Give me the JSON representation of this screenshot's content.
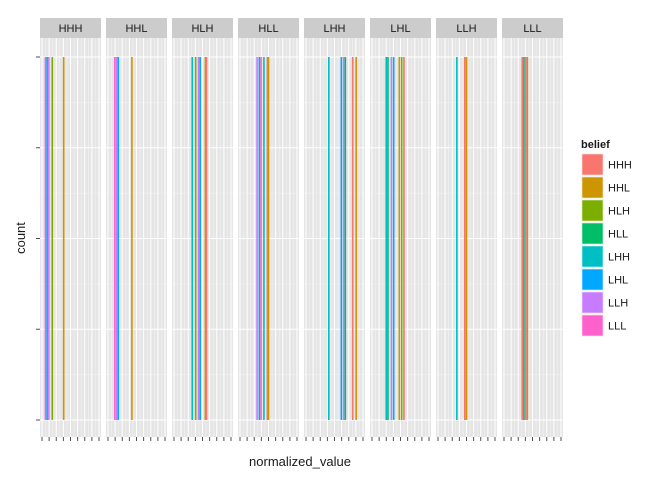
{
  "chart_data": {
    "type": "bar",
    "xlabel": "normalized_value",
    "ylabel": "count",
    "facets": [
      "HHH",
      "HHL",
      "HLH",
      "HLL",
      "LHH",
      "LHL",
      "LLH",
      "LLL"
    ],
    "xlim": [
      0,
      1
    ],
    "ylim": [
      0,
      1
    ],
    "y_ticks": [
      0,
      0.25,
      0.5,
      0.75,
      1
    ],
    "x_ticks": [
      0,
      0.125,
      0.25,
      0.375,
      0.5,
      0.625,
      0.75,
      0.875,
      1
    ],
    "grid": true,
    "legend": {
      "title": "belief",
      "position": "right",
      "entries": [
        {
          "name": "HHH",
          "color": "#F8766D"
        },
        {
          "name": "HHL",
          "color": "#CD9600"
        },
        {
          "name": "HLH",
          "color": "#7CAE00"
        },
        {
          "name": "HLL",
          "color": "#00BE67"
        },
        {
          "name": "LHH",
          "color": "#00BFC4"
        },
        {
          "name": "LHL",
          "color": "#00A9FF"
        },
        {
          "name": "LLH",
          "color": "#C77CFF"
        },
        {
          "name": "LLL",
          "color": "#FF61CC"
        }
      ]
    },
    "bars": {
      "HHH": [
        {
          "series": "LLL",
          "x": 0.06,
          "y": 1
        },
        {
          "series": "LHL",
          "x": 0.09,
          "y": 1
        },
        {
          "series": "LLH",
          "x": 0.12,
          "y": 1
        },
        {
          "series": "HLH",
          "x": 0.18,
          "y": 1
        },
        {
          "series": "HHL",
          "x": 0.38,
          "y": 1
        }
      ],
      "HHL": [
        {
          "series": "LLL",
          "x": 0.12,
          "y": 1
        },
        {
          "series": "LLH",
          "x": 0.15,
          "y": 1
        },
        {
          "series": "LHL",
          "x": 0.18,
          "y": 1
        },
        {
          "series": "HHL",
          "x": 0.42,
          "y": 1
        }
      ],
      "HLH": [
        {
          "series": "LHH",
          "x": 0.32,
          "y": 1
        },
        {
          "series": "HLH",
          "x": 0.38,
          "y": 1
        },
        {
          "series": "LLH",
          "x": 0.43,
          "y": 1
        },
        {
          "series": "LHL",
          "x": 0.46,
          "y": 1
        },
        {
          "series": "HHL",
          "x": 0.55,
          "y": 1
        },
        {
          "series": "HHH",
          "x": 0.57,
          "y": 1
        }
      ],
      "HLL": [
        {
          "series": "LLH",
          "x": 0.3,
          "y": 1
        },
        {
          "series": "LHL",
          "x": 0.34,
          "y": 1
        },
        {
          "series": "LLL",
          "x": 0.37,
          "y": 1
        },
        {
          "series": "LHH",
          "x": 0.42,
          "y": 1
        },
        {
          "series": "HHH",
          "x": 0.48,
          "y": 1
        },
        {
          "series": "HHL",
          "x": 0.5,
          "y": 1
        }
      ],
      "LHH": [
        {
          "series": "LHH",
          "x": 0.4,
          "y": 1
        },
        {
          "series": "LHL",
          "x": 0.62,
          "y": 1
        },
        {
          "series": "LLH",
          "x": 0.66,
          "y": 1
        },
        {
          "series": "HLL",
          "x": 0.69,
          "y": 1
        },
        {
          "series": "HHH",
          "x": 0.82,
          "y": 1
        },
        {
          "series": "HHL",
          "x": 0.88,
          "y": 1
        }
      ],
      "LHL": [
        {
          "series": "LHH",
          "x": 0.25,
          "y": 1
        },
        {
          "series": "HLL",
          "x": 0.28,
          "y": 1
        },
        {
          "series": "LLH",
          "x": 0.34,
          "y": 1
        },
        {
          "series": "LHL",
          "x": 0.38,
          "y": 1
        },
        {
          "series": "HHL",
          "x": 0.48,
          "y": 1
        },
        {
          "series": "HLH",
          "x": 0.52,
          "y": 1
        },
        {
          "series": "HHH",
          "x": 0.56,
          "y": 1
        }
      ],
      "LLH": [
        {
          "series": "LHH",
          "x": 0.33,
          "y": 1
        },
        {
          "series": "HHH",
          "x": 0.47,
          "y": 1
        },
        {
          "series": "HHL",
          "x": 0.5,
          "y": 1
        }
      ],
      "LLL": [
        {
          "series": "HHH",
          "x": 0.32,
          "y": 1
        },
        {
          "series": "HLL",
          "x": 0.35,
          "y": 1
        },
        {
          "series": "LLL",
          "x": 0.38,
          "y": 1
        },
        {
          "series": "HHL",
          "x": 0.41,
          "y": 1
        }
      ]
    }
  }
}
